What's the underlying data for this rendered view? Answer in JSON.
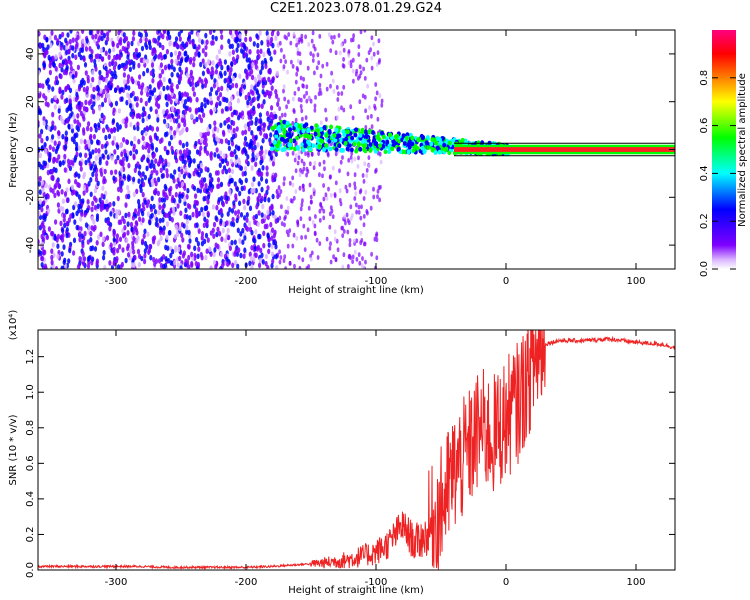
{
  "title": "C2E1.2023.078.01.29.G24",
  "chart_data": [
    {
      "type": "heatmap",
      "title": "C2E1.2023.078.01.29.G24",
      "xlabel": "Height of straight line (km)",
      "ylabel": "Frequency (Hz)",
      "xlim": [
        -360,
        130
      ],
      "ylim": [
        -50,
        50
      ],
      "xticks": [
        -300,
        -200,
        -100,
        0,
        100
      ],
      "yticks": [
        -40,
        -20,
        0,
        20,
        40
      ],
      "colorbar": {
        "label": "Normalized spectral amplitude",
        "range": [
          0,
          1
        ],
        "ticks": [
          "0.0",
          "0.2",
          "0.4",
          "0.6",
          "0.8"
        ],
        "colormap": "rainbow",
        "colors": [
          "#ffffff",
          "#d9b3ff",
          "#7f00ff",
          "#0000ff",
          "#00ffff",
          "#00ff00",
          "#ffff00",
          "#ff8000",
          "#ff0000",
          "#ff0080"
        ]
      },
      "description_regions": [
        {
          "x_range": [
            -360,
            -175
          ],
          "freq_range": [
            -50,
            50
          ],
          "level": 0.15,
          "pattern": "scattered noise"
        },
        {
          "x_range": [
            -175,
            -100
          ],
          "freq_range": [
            -50,
            50
          ],
          "level": 0.05,
          "pattern": "sparse noise"
        },
        {
          "x_range": [
            -180,
            0
          ],
          "freq_center": [
            5,
            0
          ],
          "level": 0.45,
          "pattern": "tone emerging"
        },
        {
          "x_range": [
            0,
            130
          ],
          "freq_center": 0,
          "level": 0.85,
          "pattern": "clean tone"
        }
      ]
    },
    {
      "type": "line",
      "xlabel": "Height of straight line (km)",
      "ylabel": "SNR (10 * v/v)",
      "y_multiplier": "(x10⁴)",
      "xlim": [
        -360,
        130
      ],
      "ylim": [
        0,
        1.35
      ],
      "xticks": [
        -300,
        -200,
        -100,
        0,
        100
      ],
      "yticks": [
        "0.0",
        "0.2",
        "0.4",
        "0.6",
        "0.8",
        "1.0",
        "1.2"
      ],
      "series": [
        {
          "color": "#ee2222",
          "x": [
            -360,
            -340,
            -320,
            -300,
            -280,
            -260,
            -240,
            -220,
            -200,
            -180,
            -170,
            -160,
            -150,
            -140,
            -130,
            -120,
            -110,
            -100,
            -90,
            -80,
            -70,
            -60,
            -50,
            -40,
            -30,
            -20,
            -10,
            0,
            5,
            10,
            15,
            20,
            25,
            30,
            40,
            60,
            80,
            100,
            120,
            130
          ],
          "y": [
            0.02,
            0.02,
            0.02,
            0.02,
            0.02,
            0.015,
            0.015,
            0.015,
            0.015,
            0.02,
            0.025,
            0.03,
            0.035,
            0.04,
            0.05,
            0.06,
            0.08,
            0.1,
            0.15,
            0.25,
            0.15,
            0.2,
            0.35,
            0.55,
            0.65,
            0.8,
            0.75,
            0.85,
            0.9,
            0.95,
            1.05,
            1.15,
            1.22,
            1.27,
            1.29,
            1.29,
            1.3,
            1.28,
            1.27,
            1.25
          ]
        }
      ]
    }
  ]
}
